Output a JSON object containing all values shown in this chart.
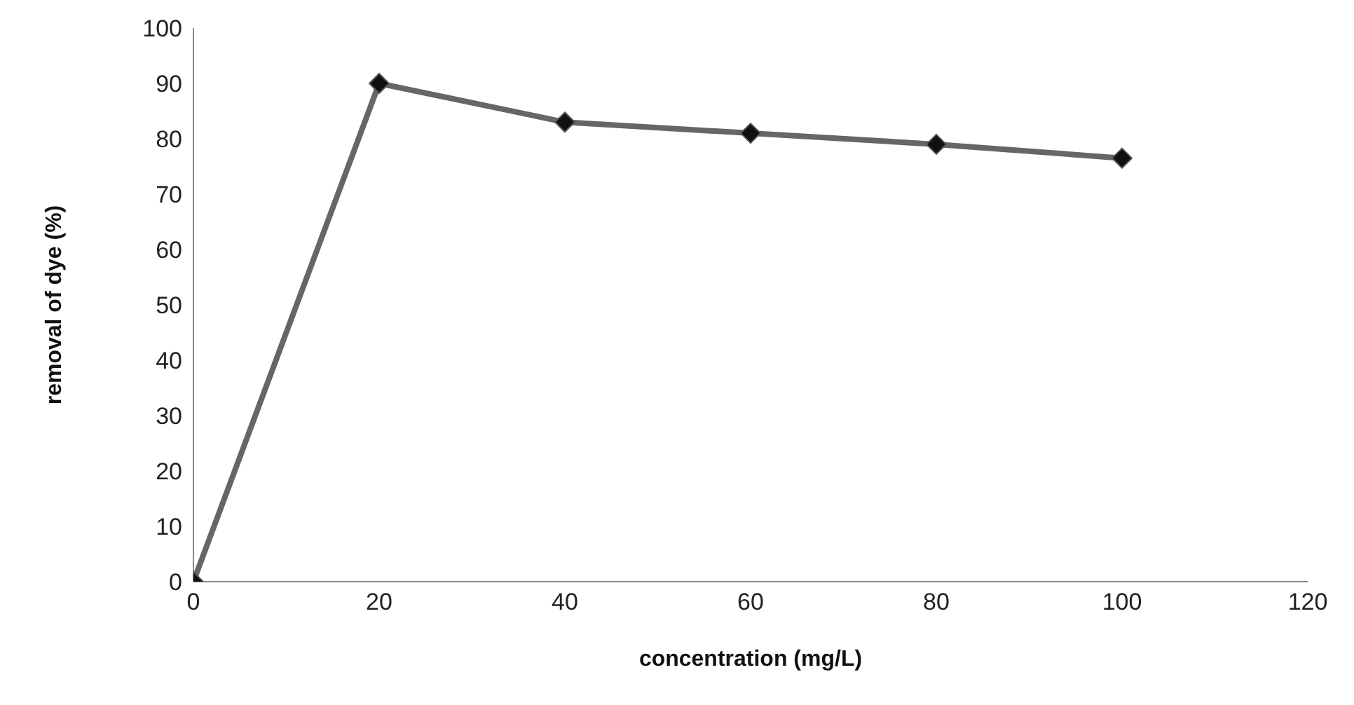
{
  "chart_data": {
    "type": "line",
    "xlabel": "concentration (mg/L)",
    "ylabel": "removal of dye (%)",
    "x": [
      0,
      20,
      40,
      60,
      80,
      100
    ],
    "series": [
      {
        "color": "#666666",
        "values": [
          0,
          90,
          83,
          81,
          79,
          76.5
        ]
      }
    ],
    "xlim": [
      0,
      120
    ],
    "xticks": [
      0,
      20,
      40,
      60,
      80,
      100,
      120
    ],
    "ylim": [
      0,
      100
    ],
    "yticks": [
      0,
      10,
      20,
      30,
      40,
      50,
      60,
      70,
      80,
      90,
      100
    ],
    "grid": false,
    "legend": false,
    "marker": "diamond",
    "line_style": "solid"
  }
}
